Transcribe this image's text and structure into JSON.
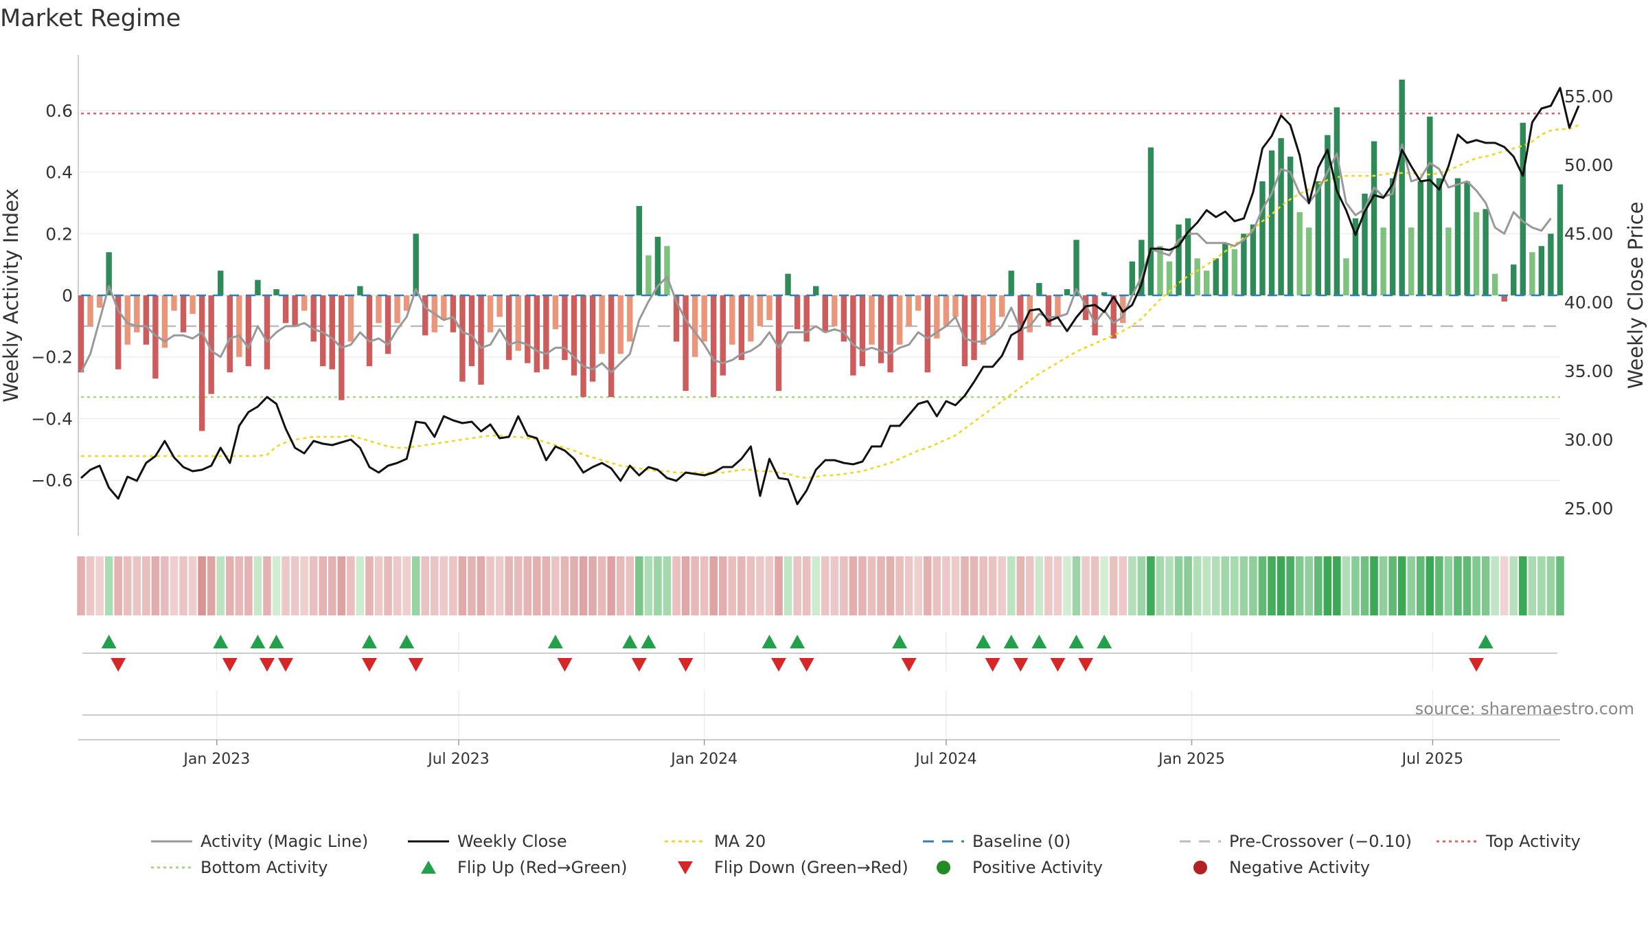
{
  "chart_data": {
    "type": "bar",
    "title": "Market Regime",
    "ylabel_left": "Weekly Activity Index",
    "ylabel_right": "Weekly Close Price",
    "source": "source: sharemaestro.com",
    "ylim_left": [
      -0.78,
      0.78
    ],
    "ylim_right": [
      23.0,
      58.0
    ],
    "yticks_left": [
      {
        "v": 0.6,
        "label": "0.6"
      },
      {
        "v": 0.4,
        "label": "0.4"
      },
      {
        "v": 0.2,
        "label": "0.2"
      },
      {
        "v": 0.0,
        "label": "0"
      },
      {
        "v": -0.2,
        "label": "−0.2"
      },
      {
        "v": -0.4,
        "label": "−0.4"
      },
      {
        "v": -0.6,
        "label": "−0.6"
      }
    ],
    "yticks_right": [
      {
        "v": 55,
        "label": "55.00"
      },
      {
        "v": 50,
        "label": "50.00"
      },
      {
        "v": 45,
        "label": "45.00"
      },
      {
        "v": 40,
        "label": "40.00"
      },
      {
        "v": 35,
        "label": "35.00"
      },
      {
        "v": 30,
        "label": "30.00"
      },
      {
        "v": 25,
        "label": "25.00"
      }
    ],
    "xticks": [
      {
        "week": 14.6,
        "label": "Jan 2023"
      },
      {
        "week": 40.6,
        "label": "Jul 2023"
      },
      {
        "week": 67.0,
        "label": "Jan 2024"
      },
      {
        "week": 93.0,
        "label": "Jul 2024"
      },
      {
        "week": 119.4,
        "label": "Jan 2025"
      },
      {
        "week": 145.3,
        "label": "Jul 2025"
      }
    ],
    "reference_levels": {
      "top_activity": 0.59,
      "bottom_activity": -0.33,
      "pre_crossover": -0.1,
      "baseline": 0.0
    },
    "colors": {
      "positive_strong": "#2e8b57",
      "positive_light": "#7dc27d",
      "negative_strong": "#cd5c5c",
      "negative_light": "#e9967a",
      "magic_line": "#999999",
      "close": "#111111",
      "ma20": "#f2d81c",
      "baseline": "#2f7fb8",
      "pre_crossover": "#bbbbbb",
      "top_activity": "#e06070",
      "bottom_activity": "#a9d67a",
      "flip_up": "#22a04a",
      "flip_down": "#d62728",
      "positive_dot": "#228b22",
      "negative_dot": "#b22222"
    },
    "activity": [
      -0.25,
      -0.1,
      -0.04,
      0.14,
      -0.24,
      -0.16,
      -0.12,
      -0.16,
      -0.27,
      -0.17,
      -0.05,
      -0.12,
      -0.06,
      -0.44,
      -0.32,
      0.08,
      -0.25,
      -0.2,
      -0.23,
      0.05,
      -0.24,
      0.02,
      -0.09,
      -0.1,
      -0.05,
      -0.15,
      -0.23,
      -0.24,
      -0.34,
      -0.15,
      0.03,
      -0.23,
      -0.09,
      -0.19,
      -0.09,
      -0.05,
      0.2,
      -0.13,
      -0.12,
      -0.08,
      -0.12,
      -0.28,
      -0.23,
      -0.29,
      -0.12,
      -0.07,
      -0.21,
      -0.18,
      -0.22,
      -0.25,
      -0.24,
      -0.11,
      -0.21,
      -0.26,
      -0.33,
      -0.28,
      -0.19,
      -0.33,
      -0.19,
      -0.15,
      0.29,
      0.13,
      0.19,
      0.16,
      -0.15,
      -0.31,
      -0.2,
      -0.15,
      -0.33,
      -0.26,
      -0.16,
      -0.21,
      -0.15,
      -0.1,
      -0.08,
      -0.31,
      0.07,
      -0.11,
      -0.15,
      0.03,
      -0.12,
      -0.1,
      -0.15,
      -0.26,
      -0.23,
      -0.16,
      -0.22,
      -0.25,
      -0.16,
      -0.1,
      -0.05,
      -0.25,
      -0.14,
      -0.1,
      -0.07,
      -0.23,
      -0.21,
      -0.16,
      -0.13,
      -0.07,
      0.08,
      -0.21,
      -0.12,
      0.04,
      -0.1,
      -0.07,
      0.02,
      0.18,
      -0.08,
      -0.13,
      0.01,
      -0.14,
      -0.09,
      0.11,
      0.18,
      0.48,
      0.16,
      0.11,
      0.23,
      0.25,
      0.12,
      0.08,
      0.12,
      0.17,
      0.15,
      0.2,
      0.23,
      0.37,
      0.47,
      0.51,
      0.45,
      0.27,
      0.22,
      0.37,
      0.52,
      0.61,
      0.12,
      0.25,
      0.33,
      0.5,
      0.22,
      0.38,
      0.7,
      0.22,
      0.37,
      0.58,
      0.38,
      0.22,
      0.38,
      0.37,
      0.27,
      0.28,
      0.07,
      -0.02,
      0.1,
      0.56,
      0.14,
      0.16,
      0.2,
      0.36
    ],
    "magic_line": [
      -0.25,
      -0.19,
      -0.08,
      0.03,
      -0.05,
      -0.09,
      -0.1,
      -0.1,
      -0.13,
      -0.15,
      -0.13,
      -0.13,
      -0.14,
      -0.12,
      -0.18,
      -0.2,
      -0.14,
      -0.13,
      -0.17,
      -0.1,
      -0.15,
      -0.12,
      -0.1,
      -0.1,
      -0.09,
      -0.11,
      -0.12,
      -0.14,
      -0.17,
      -0.16,
      -0.12,
      -0.15,
      -0.14,
      -0.16,
      -0.11,
      -0.07,
      0.02,
      -0.04,
      -0.06,
      -0.08,
      -0.07,
      -0.12,
      -0.13,
      -0.17,
      -0.16,
      -0.11,
      -0.16,
      -0.15,
      -0.16,
      -0.18,
      -0.19,
      -0.17,
      -0.17,
      -0.2,
      -0.23,
      -0.24,
      -0.22,
      -0.25,
      -0.22,
      -0.19,
      -0.08,
      -0.02,
      0.03,
      0.06,
      -0.02,
      -0.08,
      -0.12,
      -0.16,
      -0.21,
      -0.22,
      -0.21,
      -0.19,
      -0.18,
      -0.16,
      -0.12,
      -0.17,
      -0.12,
      -0.12,
      -0.12,
      -0.1,
      -0.12,
      -0.11,
      -0.12,
      -0.16,
      -0.18,
      -0.17,
      -0.18,
      -0.19,
      -0.17,
      -0.16,
      -0.12,
      -0.14,
      -0.12,
      -0.1,
      -0.07,
      -0.14,
      -0.15,
      -0.15,
      -0.13,
      -0.1,
      -0.04,
      -0.11,
      -0.1,
      -0.06,
      -0.07,
      -0.07,
      -0.06,
      0.02,
      -0.03,
      -0.09,
      -0.05,
      -0.09,
      -0.07,
      0.0,
      0.06,
      0.15,
      0.14,
      0.13,
      0.18,
      0.2,
      0.2,
      0.17,
      0.17,
      0.17,
      0.16,
      0.18,
      0.21,
      0.28,
      0.33,
      0.41,
      0.4,
      0.33,
      0.3,
      0.34,
      0.4,
      0.46,
      0.3,
      0.26,
      0.28,
      0.35,
      0.32,
      0.33,
      0.49,
      0.37,
      0.38,
      0.43,
      0.41,
      0.35,
      0.36,
      0.37,
      0.34,
      0.3,
      0.22,
      0.2,
      0.27,
      0.24,
      0.22,
      0.21,
      0.25
    ],
    "close": [
      27.2,
      27.8,
      28.1,
      26.5,
      25.7,
      27.3,
      27.0,
      28.3,
      28.8,
      29.9,
      28.7,
      28.0,
      27.7,
      27.8,
      28.1,
      29.4,
      28.3,
      31.0,
      32.0,
      32.4,
      33.1,
      32.6,
      30.8,
      29.4,
      29.0,
      29.9,
      29.7,
      29.6,
      29.8,
      30.0,
      29.4,
      28.0,
      27.6,
      28.1,
      28.3,
      28.6,
      31.3,
      31.2,
      30.2,
      31.7,
      31.4,
      31.2,
      31.3,
      30.6,
      31.1,
      30.1,
      30.2,
      31.7,
      30.3,
      30.1,
      28.5,
      29.5,
      29.2,
      28.6,
      27.6,
      28.0,
      28.3,
      27.9,
      27.0,
      28.1,
      27.4,
      28.0,
      27.8,
      27.2,
      27.0,
      27.6,
      27.5,
      27.4,
      27.6,
      28.0,
      28.0,
      28.6,
      29.5,
      25.9,
      28.6,
      27.2,
      27.1,
      25.3,
      26.3,
      27.8,
      28.5,
      28.5,
      28.3,
      28.2,
      28.4,
      29.5,
      29.5,
      31.0,
      31.0,
      31.8,
      32.6,
      32.8,
      31.7,
      32.8,
      32.5,
      33.2,
      34.2,
      35.3,
      35.3,
      36.1,
      37.6,
      38.0,
      39.4,
      39.5,
      38.6,
      38.9,
      37.9,
      38.9,
      39.7,
      39.8,
      39.3,
      40.4,
      39.3,
      39.8,
      41.3,
      43.9,
      43.9,
      43.8,
      44.1,
      45.1,
      45.8,
      46.7,
      46.2,
      46.6,
      45.9,
      46.1,
      48.0,
      51.2,
      52.1,
      53.6,
      52.9,
      50.7,
      47.2,
      49.8,
      51.1,
      48.1,
      46.7,
      44.9,
      46.6,
      47.8,
      47.6,
      48.6,
      51.1,
      49.9,
      48.8,
      48.9,
      48.2,
      49.9,
      52.2,
      51.6,
      51.8,
      51.6,
      51.6,
      51.3,
      50.6,
      49.2,
      53.1,
      54.1,
      54.3,
      55.6,
      52.7,
      54.3
    ],
    "ma20": [
      28.8,
      28.8,
      28.8,
      28.8,
      28.8,
      28.8,
      28.8,
      28.8,
      28.8,
      28.8,
      28.8,
      28.8,
      28.8,
      28.8,
      28.8,
      28.8,
      28.8,
      28.8,
      28.8,
      28.8,
      28.9,
      29.5,
      29.8,
      30.0,
      30.1,
      30.2,
      30.2,
      30.2,
      30.2,
      30.3,
      30.1,
      29.9,
      29.7,
      29.5,
      29.4,
      29.4,
      29.5,
      29.6,
      29.7,
      29.8,
      29.9,
      30.0,
      30.1,
      30.2,
      30.3,
      30.3,
      30.2,
      30.2,
      30.1,
      30.0,
      29.8,
      29.6,
      29.4,
      29.2,
      28.9,
      28.7,
      28.5,
      28.3,
      28.1,
      28.0,
      27.9,
      27.8,
      27.7,
      27.7,
      27.6,
      27.6,
      27.6,
      27.6,
      27.6,
      27.6,
      27.7,
      27.8,
      27.8,
      27.7,
      27.7,
      27.6,
      27.5,
      27.3,
      27.2,
      27.3,
      27.4,
      27.4,
      27.5,
      27.6,
      27.7,
      27.9,
      28.1,
      28.3,
      28.6,
      28.9,
      29.2,
      29.4,
      29.7,
      30.0,
      30.3,
      30.8,
      31.3,
      31.8,
      32.3,
      32.8,
      33.3,
      33.8,
      34.3,
      34.8,
      35.2,
      35.6,
      36.0,
      36.4,
      36.7,
      37.0,
      37.3,
      37.6,
      37.9,
      38.3,
      38.8,
      39.5,
      40.2,
      40.8,
      41.4,
      41.9,
      42.3,
      42.7,
      43.2,
      43.7,
      44.2,
      44.7,
      45.3,
      45.9,
      46.4,
      47.0,
      47.5,
      47.9,
      48.2,
      48.6,
      48.9,
      49.1,
      49.2,
      49.2,
      49.2,
      49.2,
      49.3,
      49.4,
      49.4,
      49.4,
      49.3,
      49.3,
      49.4,
      49.6,
      49.9,
      50.2,
      50.5,
      50.6,
      50.8,
      51.0,
      51.2,
      51.4,
      51.7,
      52.2,
      52.5,
      52.6,
      52.6,
      52.9
    ],
    "flip_up_weeks": [
      3,
      15,
      19,
      21,
      31,
      35,
      51,
      59,
      61,
      74,
      77,
      88,
      97,
      100,
      103,
      107,
      110,
      151
    ],
    "flip_down_weeks": [
      4,
      16,
      20,
      22,
      31,
      36,
      52,
      60,
      65,
      75,
      78,
      89,
      98,
      101,
      105,
      108,
      150
    ]
  },
  "legend": [
    {
      "key": "magic",
      "label": "Activity (Magic Line)"
    },
    {
      "key": "close",
      "label": "Weekly Close"
    },
    {
      "key": "ma20",
      "label": "MA 20"
    },
    {
      "key": "baseline",
      "label": "Baseline (0)"
    },
    {
      "key": "precross",
      "label": "Pre-Crossover (−0.10)"
    },
    {
      "key": "top",
      "label": "Top Activity"
    },
    {
      "key": "bottom",
      "label": "Bottom Activity"
    },
    {
      "key": "flipup",
      "label": "Flip Up (Red→Green)"
    },
    {
      "key": "flipdown",
      "label": "Flip Down (Green→Red)"
    },
    {
      "key": "posdot",
      "label": "Positive Activity"
    },
    {
      "key": "negdot",
      "label": "Negative Activity"
    }
  ]
}
